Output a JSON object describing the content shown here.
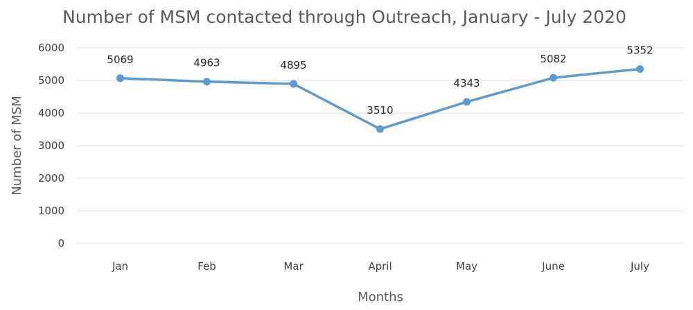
{
  "chart_data": {
    "type": "line",
    "title": "Number of MSM contacted through Outreach, January - July 2020",
    "xlabel": "Months",
    "ylabel": "Number of MSM",
    "categories": [
      "Jan",
      "Feb",
      "Mar",
      "April",
      "May",
      "June",
      "July"
    ],
    "series": [
      {
        "values": [
          5069,
          4963,
          4895,
          3510,
          4343,
          5082,
          5352
        ]
      }
    ],
    "y_ticks": [
      "0",
      "1000",
      "2000",
      "3000",
      "4000",
      "5000",
      "6000"
    ],
    "ylim": [
      0,
      6000
    ],
    "grid": true,
    "legend": "none",
    "data_labels": true,
    "series_color": "#5b9bd5"
  }
}
